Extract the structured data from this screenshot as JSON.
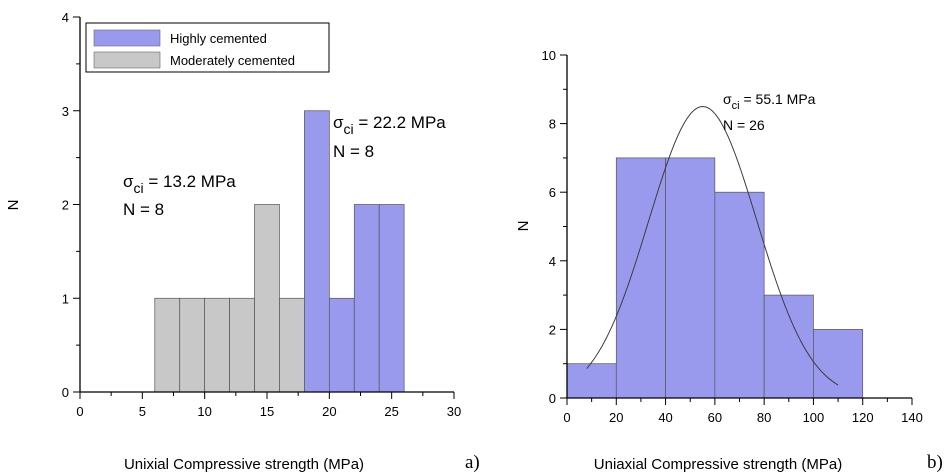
{
  "chart_data": [
    {
      "type": "bar",
      "panel_label": "a)",
      "xlabel": "Unixial Compressive strength (MPa)",
      "ylabel": "N",
      "xlim": [
        0,
        30
      ],
      "ylim": [
        0,
        4
      ],
      "xticks": [
        0,
        5,
        10,
        15,
        20,
        25,
        30
      ],
      "yticks": [
        0,
        1,
        2,
        3,
        4
      ],
      "legend": {
        "position": "top-left",
        "entries": [
          "Highly cemented",
          "Moderately cemented"
        ]
      },
      "series": [
        {
          "name": "Moderately cemented",
          "color": "#c8c8c8",
          "bins": [
            {
              "x0": 6,
              "x1": 8,
              "count": 1
            },
            {
              "x0": 8,
              "x1": 10,
              "count": 1
            },
            {
              "x0": 10,
              "x1": 12,
              "count": 1
            },
            {
              "x0": 12,
              "x1": 14,
              "count": 1
            },
            {
              "x0": 14,
              "x1": 16,
              "count": 2
            },
            {
              "x0": 16,
              "x1": 18,
              "count": 1
            },
            {
              "x0": 18,
              "x1": 20,
              "count": 1
            }
          ]
        },
        {
          "name": "Highly cemented",
          "color": "#9999ee",
          "bins": [
            {
              "x0": 18,
              "x1": 20,
              "count": 3
            },
            {
              "x0": 20,
              "x1": 22,
              "count": 1
            },
            {
              "x0": 22,
              "x1": 24,
              "count": 2
            },
            {
              "x0": 24,
              "x1": 26,
              "count": 2
            }
          ]
        }
      ],
      "annotations": [
        {
          "id": "moderate",
          "sigma_symbol": "σ",
          "subscript": "ci",
          "value_text": " = 13.2 MPa",
          "n_text": "N = 8"
        },
        {
          "id": "high",
          "sigma_symbol": "σ",
          "subscript": "ci",
          "value_text": " = 22.2 MPa",
          "n_text": "N = 8"
        }
      ]
    },
    {
      "type": "bar",
      "panel_label": "b)",
      "xlabel": "Uniaxial Compressive strength (MPa)",
      "ylabel": "N",
      "xlim": [
        0,
        140
      ],
      "ylim": [
        0,
        10
      ],
      "xticks": [
        0,
        20,
        40,
        60,
        80,
        100,
        120,
        140
      ],
      "yticks": [
        0,
        2,
        4,
        6,
        8,
        10
      ],
      "series": [
        {
          "color": "#9999ee",
          "bins": [
            {
              "x0": 0,
              "x1": 20,
              "count": 1
            },
            {
              "x0": 20,
              "x1": 40,
              "count": 7
            },
            {
              "x0": 40,
              "x1": 60,
              "count": 7
            },
            {
              "x0": 60,
              "x1": 80,
              "count": 6
            },
            {
              "x0": 80,
              "x1": 100,
              "count": 3
            },
            {
              "x0": 100,
              "x1": 120,
              "count": 2
            }
          ]
        }
      ],
      "normal_fit": {
        "x_range": [
          8,
          110
        ],
        "peak_x": 55.1,
        "peak_y": 8.5,
        "sd": 22
      },
      "annotations": [
        {
          "id": "all",
          "sigma_symbol": "σ",
          "subscript": "ci",
          "value_text": " = 55.1 MPa",
          "n_text": "N = 26"
        }
      ]
    }
  ]
}
